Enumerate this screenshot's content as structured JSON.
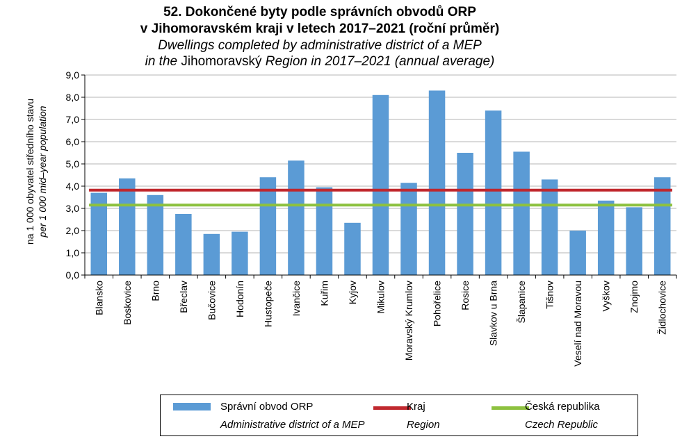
{
  "title": {
    "line1": "52. Dokončené byty podle správních obvodů ORP",
    "line2": "v Jihomoravském kraji v letech 2017–2021 (roční průměr)",
    "line3": "Dwellings completed by administrative district of a MEP",
    "line4_a": "in the ",
    "line4_b": "Jihomoravský",
    "line4_c": " Region in 2017–2021 (annual average)"
  },
  "chart_data": {
    "type": "bar",
    "ylabel_cz": "na 1 000 obyvatel středního stavu",
    "ylabel_en": "per 1 000 mid–year population",
    "ylim": [
      0,
      9
    ],
    "yticks": [
      "0,0",
      "1,0",
      "2,0",
      "3,0",
      "4,0",
      "5,0",
      "6,0",
      "7,0",
      "8,0",
      "9,0"
    ],
    "categories": [
      "Blansko",
      "Boskovice",
      "Brno",
      "Břeclav",
      "Bučovice",
      "Hodonín",
      "Hustopeče",
      "Ivančice",
      "Kuřim",
      "Kyjov",
      "Mikulov",
      "Moravský Krumlov",
      "Pohořelice",
      "Rosice",
      "Slavkov u Brna",
      "Šlapanice",
      "Tišnov",
      "Veselí nad Moravou",
      "Vyškov",
      "Znojmo",
      "Židlochovice"
    ],
    "series": [
      {
        "name": "Správní obvod ORP",
        "values": [
          3.7,
          4.35,
          3.6,
          2.75,
          1.85,
          1.95,
          4.4,
          5.15,
          3.95,
          2.35,
          8.1,
          4.15,
          8.3,
          5.5,
          7.4,
          5.55,
          4.3,
          2.0,
          3.35,
          3.05,
          4.4
        ]
      }
    ],
    "reference_lines": [
      {
        "name": "Kraj",
        "value": 3.82,
        "color": "#c0282e"
      },
      {
        "name": "Česká republika",
        "value": 3.15,
        "color": "#8dc13f"
      }
    ],
    "bar_color": "#5b9bd5",
    "grid": true
  },
  "legend": {
    "items": [
      {
        "label_cz": "Správní obvod ORP",
        "label_en": "Administrative district of a MEP",
        "color": "#5b9bd5"
      },
      {
        "label_cz": "Kraj",
        "label_en": "Region",
        "color": "#c0282e"
      },
      {
        "label_cz": "Česká republika",
        "label_en": "Czech Republic",
        "color": "#8dc13f"
      }
    ]
  }
}
